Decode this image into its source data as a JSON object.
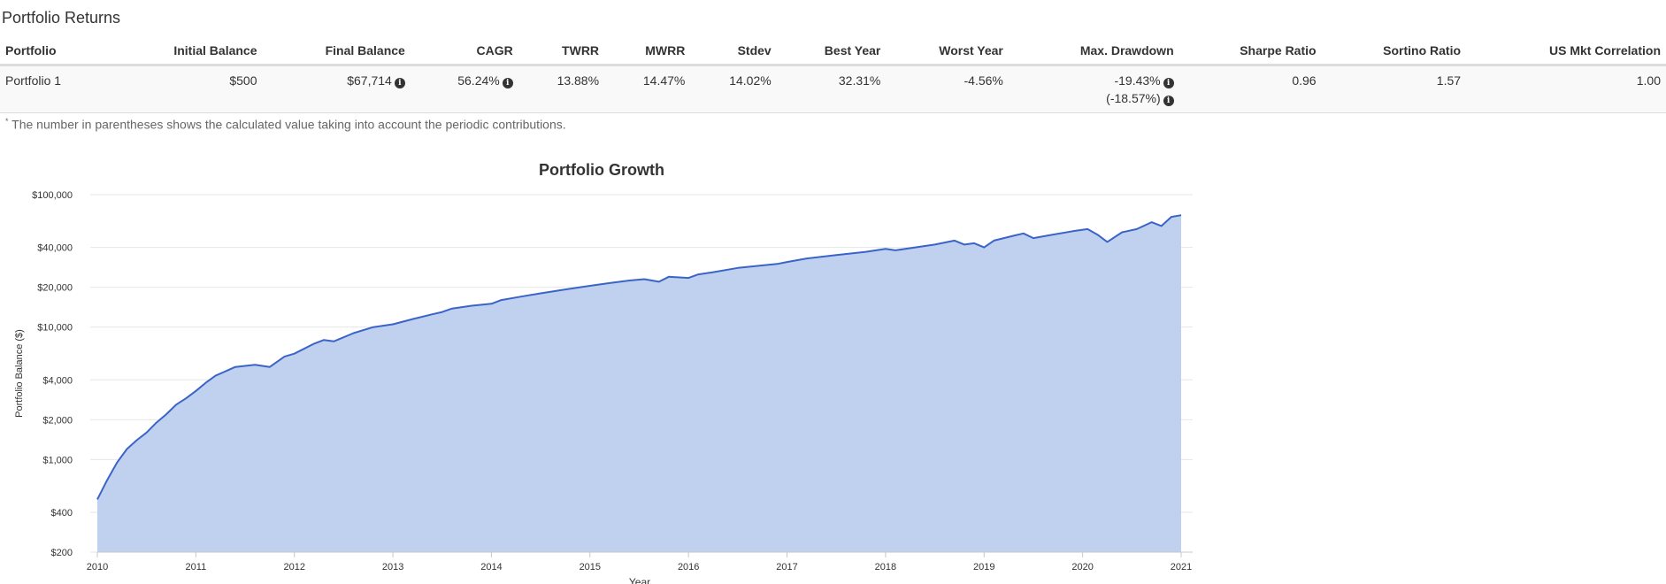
{
  "section_title": "Portfolio Returns",
  "table": {
    "headers": [
      "Portfolio",
      "Initial Balance",
      "Final Balance",
      "CAGR",
      "TWRR",
      "MWRR",
      "Stdev",
      "Best Year",
      "Worst Year",
      "Max. Drawdown",
      "Sharpe Ratio",
      "Sortino Ratio",
      "US Mkt Correlation"
    ],
    "row": {
      "portfolio": "Portfolio 1",
      "initial_balance": "$500",
      "final_balance": "$67,714",
      "cagr": "56.24%",
      "twrr": "13.88%",
      "mwrr": "14.47%",
      "stdev": "14.02%",
      "best_year": "32.31%",
      "worst_year": "-4.56%",
      "max_drawdown": "-19.43%",
      "max_drawdown_contrib": "(-18.57%)",
      "sharpe_ratio": "0.96",
      "sortino_ratio": "1.57",
      "us_mkt_correlation": "1.00"
    }
  },
  "footnote": {
    "marker": "*",
    "text": "The number in parentheses shows the calculated value taking into account the periodic contributions."
  },
  "icons": {
    "info": "info-circle-icon"
  },
  "chart_data": {
    "type": "area",
    "title": "Portfolio Growth",
    "xlabel": "Year",
    "ylabel": "Portfolio Balance ($)",
    "yscale": "log",
    "ylim": [
      200,
      100000
    ],
    "xlim": [
      2010,
      2021
    ],
    "yticks": [
      {
        "value": 100000,
        "label": "$100,000"
      },
      {
        "value": 40000,
        "label": "$40,000"
      },
      {
        "value": 20000,
        "label": "$20,000"
      },
      {
        "value": 10000,
        "label": "$10,000"
      },
      {
        "value": 4000,
        "label": "$4,000"
      },
      {
        "value": 2000,
        "label": "$2,000"
      },
      {
        "value": 1000,
        "label": "$1,000"
      },
      {
        "value": 400,
        "label": "$400"
      },
      {
        "value": 200,
        "label": "$200"
      }
    ],
    "xticks": [
      "2010",
      "2011",
      "2012",
      "2013",
      "2014",
      "2015",
      "2016",
      "2017",
      "2018",
      "2019",
      "2020",
      "2021"
    ],
    "colors": {
      "line": "#3a64c8",
      "fill": "#c0d0ef",
      "grid": "#e6e6e6"
    },
    "series": [
      {
        "name": "Portfolio 1",
        "x": [
          2010.0,
          2010.1,
          2010.2,
          2010.3,
          2010.4,
          2010.5,
          2010.6,
          2010.7,
          2010.8,
          2010.9,
          2011.0,
          2011.1,
          2011.2,
          2011.4,
          2011.6,
          2011.75,
          2011.9,
          2012.0,
          2012.2,
          2012.3,
          2012.4,
          2012.6,
          2012.8,
          2013.0,
          2013.2,
          2013.4,
          2013.5,
          2013.6,
          2013.8,
          2014.0,
          2014.1,
          2014.3,
          2014.5,
          2014.7,
          2014.9,
          2015.0,
          2015.2,
          2015.4,
          2015.55,
          2015.7,
          2015.8,
          2016.0,
          2016.1,
          2016.25,
          2016.5,
          2016.7,
          2016.9,
          2017.0,
          2017.2,
          2017.5,
          2017.8,
          2018.0,
          2018.1,
          2018.3,
          2018.5,
          2018.7,
          2018.8,
          2018.9,
          2019.0,
          2019.1,
          2019.3,
          2019.4,
          2019.5,
          2019.7,
          2019.9,
          2020.05,
          2020.15,
          2020.25,
          2020.4,
          2020.55,
          2020.7,
          2020.8,
          2020.9,
          2021.0
        ],
        "values": [
          500,
          700,
          950,
          1200,
          1400,
          1600,
          1900,
          2200,
          2600,
          2900,
          3300,
          3800,
          4300,
          5000,
          5200,
          5000,
          6000,
          6300,
          7500,
          8000,
          7800,
          9000,
          10000,
          10500,
          11500,
          12500,
          13000,
          13800,
          14500,
          15000,
          16000,
          17000,
          18000,
          19000,
          20000,
          20500,
          21500,
          22500,
          23000,
          22000,
          24000,
          23500,
          25000,
          26000,
          28000,
          29000,
          30000,
          31000,
          33000,
          35000,
          37000,
          39000,
          38000,
          40000,
          42000,
          45000,
          42000,
          43000,
          40000,
          45000,
          49000,
          51000,
          47000,
          50000,
          53000,
          55000,
          50000,
          44000,
          52000,
          55000,
          62000,
          58000,
          68000,
          70000
        ]
      }
    ]
  }
}
